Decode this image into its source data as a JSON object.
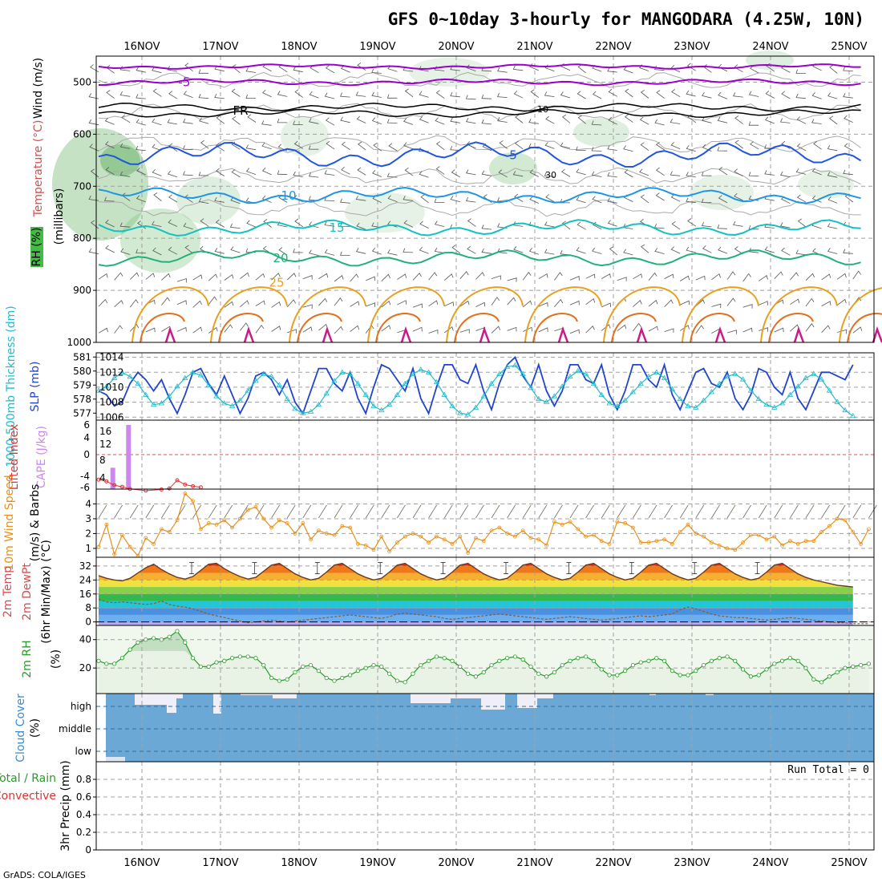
{
  "title": "GFS 0~10day 3-hourly for MANGODARA (4.25W, 10N)",
  "footer": "GrADS: COLA/IGES",
  "x_labels": [
    "16NOV",
    "17NOV",
    "18NOV",
    "19NOV",
    "20NOV",
    "21NOV",
    "22NOV",
    "23NOV",
    "24NOV",
    "25NOV"
  ],
  "colors": {
    "grid": "#a0a0a0",
    "rh_fill": "#7fbf7f",
    "temp_500": "#9900cc",
    "temp_fr": "#000000",
    "temp_5": "#2255dd",
    "temp_10": "#1e96e6",
    "temp_15": "#14c0c0",
    "temp_20": "#22b07a",
    "temp_25": "#e8a020",
    "temp_30": "#e07020",
    "temp_35": "#cc1a88",
    "slp": "#2244cc",
    "thickness": "#22bbcc",
    "cape": "#cc88ee",
    "lifted": "#dd3333",
    "wind10m": "#e8901a",
    "rh2m": "#2a9a2a",
    "cloud": "#6ba8d6",
    "cloud_gap": "#f0eef8"
  },
  "chart_data": [
    {
      "panel": "upper-air",
      "type": "heatmap",
      "ylabels": [
        "Wind (m/s)",
        "Temperature (°C)",
        "RH (%)",
        "(millibars)"
      ],
      "yticks": [
        500,
        600,
        700,
        800,
        900,
        1000
      ],
      "ylim": [
        1000,
        450
      ],
      "isotherm_labels": [
        {
          "label": "-5",
          "level": 500
        },
        {
          "label": "FR",
          "level": 555
        },
        {
          "label": "5",
          "level": 640
        },
        {
          "label": "10",
          "level": 718
        },
        {
          "label": "15",
          "level": 780
        },
        {
          "label": "20",
          "level": 838
        },
        {
          "label": "25",
          "level": 885
        }
      ],
      "contour_labels": [
        "10",
        "30"
      ]
    },
    {
      "panel": "slp-thickness",
      "type": "line",
      "ylabels": [
        "1000-500mb Thickness (dm)",
        "SLP (mb)"
      ],
      "left_ticks": [
        577,
        578,
        579,
        580,
        581
      ],
      "right_ticks": [
        1006,
        1008,
        1010,
        1012,
        1014
      ],
      "left_ylim": [
        576.5,
        581.3
      ],
      "right_ylim": [
        1005.6,
        1014.6
      ],
      "series": [
        {
          "name": "SLP (mb)",
          "values": [
            1009.5,
            1009.0,
            1007.5,
            1008.0,
            1010.5,
            1012.0,
            1011.0,
            1009.5,
            1011.0,
            1008.5,
            1006.5,
            1009.0,
            1012.0,
            1012.5,
            1010.5,
            1009.0,
            1011.5,
            1009.0,
            1006.5,
            1008.5,
            1011.5,
            1012.0,
            1011.0,
            1009.0,
            1011.0,
            1008.0,
            1006.5,
            1009.5,
            1012.5,
            1012.5,
            1010.5,
            1009.5,
            1012.0,
            1008.5,
            1006.5,
            1010.0,
            1013.0,
            1012.5,
            1011.0,
            1009.5,
            1012.5,
            1008.5,
            1006.5,
            1010.0,
            1013.0,
            1013.0,
            1011.0,
            1010.5,
            1013.0,
            1009.5,
            1007.0,
            1010.5,
            1013.0,
            1014.0,
            1011.5,
            1010.0,
            1013.0,
            1009.5,
            1007.5,
            1009.5,
            1013.0,
            1013.0,
            1011.0,
            1010.5,
            1013.0,
            1009.0,
            1007.0,
            1009.5,
            1013.0,
            1013.0,
            1011.0,
            1010.0,
            1013.0,
            1009.0,
            1007.0,
            1009.5,
            1012.0,
            1012.5,
            1010.5,
            1010.0,
            1012.0,
            1008.5,
            1007.0,
            1009.0,
            1012.5,
            1012.0,
            1010.0,
            1009.0,
            1012.0,
            1008.5,
            1007.0,
            1009.5,
            1012.0,
            1012.0,
            1011.5,
            1011.0,
            1013.0
          ]
        },
        {
          "name": "1000-500mb Thickness (dm)",
          "values": [
            578.6,
            578.9,
            579.5,
            579.9,
            579.6,
            579.1,
            578.3,
            577.6,
            577.7,
            578.2,
            578.9,
            579.5,
            579.9,
            579.7,
            579.0,
            578.2,
            577.7,
            577.5,
            577.9,
            578.6,
            579.3,
            579.8,
            579.6,
            579.0,
            578.0,
            577.3,
            577.0,
            577.1,
            577.6,
            578.4,
            579.3,
            579.9,
            579.8,
            579.1,
            578.3,
            577.5,
            577.2,
            577.6,
            578.3,
            579.1,
            579.8,
            580.1,
            579.9,
            579.2,
            578.3,
            577.5,
            577.0,
            576.9,
            577.4,
            578.2,
            579.1,
            579.8,
            580.3,
            580.4,
            579.8,
            578.8,
            578.0,
            577.8,
            578.2,
            578.9,
            579.6,
            580.0,
            579.8,
            579.1,
            578.3,
            577.7,
            577.5,
            577.9,
            578.5,
            579.1,
            579.6,
            579.9,
            579.5,
            578.7,
            578.0,
            577.5,
            577.4,
            577.9,
            578.5,
            579.1,
            579.6,
            579.8,
            579.4,
            578.6,
            578.0,
            577.6,
            577.4,
            577.7,
            578.3,
            578.9,
            579.5,
            579.8,
            579.4,
            578.6,
            577.8,
            577.2,
            576.8
          ]
        }
      ]
    },
    {
      "panel": "cape-lifted",
      "type": "bar",
      "ylabels": [
        "CAPE (J/kg)",
        "Lifted Index"
      ],
      "left_ticks": [
        "6",
        "4",
        "0",
        "-4",
        "-6"
      ],
      "right_ticks": [
        "16",
        "12",
        "8",
        "4"
      ],
      "series": [
        {
          "name": "CAPE (J/kg)",
          "values": [
            {
              "x": 1.5,
              "v": 6
            },
            {
              "x": 3.5,
              "v": 18
            }
          ]
        },
        {
          "name": "Lifted Index",
          "values": [
            {
              "x": 0,
              "v": 4.6
            },
            {
              "x": 1,
              "v": 4.9
            },
            {
              "x": 2,
              "v": 5.6
            },
            {
              "x": 3,
              "v": 5.9
            },
            {
              "x": 4,
              "v": 6.3
            },
            {
              "x": 6,
              "v": 6.6
            },
            {
              "x": 8,
              "v": 6.4
            },
            {
              "x": 9,
              "v": 6.2
            },
            {
              "x": 10,
              "v": 4.7
            },
            {
              "x": 11,
              "v": 5.5
            },
            {
              "x": 12,
              "v": 5.8
            },
            {
              "x": 13,
              "v": 6.0
            }
          ]
        }
      ]
    },
    {
      "panel": "wind10m",
      "type": "line",
      "ylabels": [
        "10m Wind Speed",
        "(m/s) & Barbs"
      ],
      "yticks": [
        1,
        2,
        3,
        4
      ],
      "ylim": [
        0.4,
        5.0
      ],
      "series": [
        {
          "name": "10m Wind Speed",
          "values": [
            1.1,
            2.6,
            0.6,
            1.9,
            1.1,
            0.5,
            1.7,
            1.3,
            2.3,
            2.1,
            2.9,
            4.7,
            4.2,
            2.3,
            2.7,
            2.6,
            2.9,
            2.4,
            3.0,
            3.6,
            3.8,
            3.0,
            2.4,
            2.9,
            2.7,
            2.0,
            2.7,
            1.6,
            2.2,
            2.0,
            1.9,
            2.5,
            2.4,
            1.3,
            1.2,
            0.9,
            1.8,
            0.8,
            1.4,
            1.8,
            2.0,
            1.8,
            1.4,
            1.8,
            1.6,
            1.3,
            1.8,
            0.7,
            1.7,
            1.5,
            2.2,
            2.4,
            2.0,
            1.8,
            2.2,
            1.7,
            1.6,
            1.2,
            2.8,
            2.6,
            2.8,
            2.3,
            1.8,
            1.9,
            1.5,
            1.3,
            2.8,
            2.7,
            2.4,
            1.4,
            1.4,
            1.5,
            1.6,
            1.3,
            2.1,
            2.6,
            2.0,
            1.8,
            1.4,
            1.2,
            1.0,
            0.9,
            1.4,
            1.9,
            1.9,
            1.6,
            1.8,
            1.2,
            1.5,
            1.3,
            1.5,
            1.5,
            2.1,
            2.5,
            3.0,
            2.9,
            2.1,
            1.3,
            2.3
          ]
        }
      ]
    },
    {
      "panel": "temp2m",
      "type": "area",
      "ylabels": [
        "2m Temp",
        "2m DewPt",
        "(6hr Min/Max) (°C)"
      ],
      "yticks": [
        0,
        8,
        16,
        24,
        32
      ],
      "ylim": [
        -2,
        37
      ],
      "series": [
        {
          "name": "2m Temp",
          "values": [
            26.5,
            25.0,
            24.0,
            23.5,
            25.0,
            28.0,
            31.0,
            33.0,
            30.0,
            27.5,
            25.5,
            24.5,
            26.0,
            29.5,
            33.0,
            33.5,
            30.5,
            28.0,
            26.0,
            24.5,
            25.5,
            29.0,
            32.5,
            33.5,
            30.5,
            27.5,
            25.5,
            24.0,
            25.0,
            28.5,
            32.5,
            33.5,
            30.5,
            27.5,
            25.5,
            24.0,
            25.0,
            28.5,
            32.5,
            33.5,
            30.5,
            27.5,
            25.5,
            24.0,
            25.0,
            28.5,
            32.5,
            33.5,
            30.5,
            27.5,
            25.5,
            24.0,
            25.0,
            28.5,
            32.5,
            33.5,
            30.5,
            27.5,
            25.5,
            24.0,
            25.0,
            28.5,
            32.5,
            33.5,
            30.5,
            27.5,
            25.5,
            24.0,
            25.0,
            28.5,
            32.5,
            33.5,
            30.5,
            27.5,
            25.5,
            24.0,
            25.0,
            28.5,
            32.5,
            33.5,
            30.5,
            27.5,
            25.5,
            24.0,
            25.0,
            28.5,
            32.5,
            33.5,
            30.5,
            27.5,
            25.5,
            24.0,
            23.0,
            22.0,
            21.0,
            20.5,
            20.0
          ]
        },
        {
          "name": "2m DewPt",
          "values": [
            13.0,
            11.5,
            11.0,
            11.5,
            11.0,
            10.5,
            10.0,
            10.5,
            12.0,
            10.0,
            9.0,
            8.5,
            7.5,
            6.0,
            4.5,
            3.5,
            2.5,
            1.5,
            0.5,
            -0.5,
            0.0,
            0.5,
            1.0,
            0.5,
            0.0,
            0.5,
            1.0,
            1.5,
            2.0,
            2.5,
            3.0,
            3.5,
            4.0,
            3.5,
            3.0,
            2.5,
            2.0,
            3.0,
            4.5,
            5.0,
            4.5,
            4.0,
            3.5,
            3.0,
            2.0,
            1.5,
            2.0,
            2.5,
            3.0,
            3.5,
            4.0,
            4.5,
            4.0,
            3.5,
            3.0,
            2.5,
            2.0,
            1.5,
            2.0,
            2.5,
            3.0,
            2.5,
            2.0,
            1.5,
            1.0,
            1.5,
            2.0,
            2.5,
            3.0,
            3.5,
            3.0,
            3.5,
            4.0,
            4.5,
            7.0,
            8.5,
            7.5,
            6.0,
            4.5,
            3.5,
            3.0,
            2.5,
            2.5,
            2.0,
            1.5,
            1.0,
            1.5,
            2.0,
            2.5,
            2.0,
            1.5,
            1.0,
            0.5,
            0.0,
            -0.5,
            -0.5,
            -1.0,
            -1.0,
            -1.0
          ]
        }
      ]
    },
    {
      "panel": "rh2m",
      "type": "area",
      "ylabels": [
        "2m RH",
        "(%)"
      ],
      "yticks": [
        20,
        40
      ],
      "ylim": [
        2,
        50
      ],
      "series": [
        {
          "name": "2m RH",
          "values": [
            25,
            23,
            23,
            27,
            33,
            38,
            40,
            41,
            40,
            42,
            46,
            38,
            27,
            21,
            21,
            24,
            25,
            27,
            28,
            28,
            27,
            22,
            13,
            11,
            12,
            17,
            21,
            22,
            18,
            13,
            11,
            13,
            15,
            18,
            20,
            22,
            21,
            16,
            11,
            10,
            16,
            22,
            25,
            28,
            27,
            25,
            21,
            16,
            14,
            17,
            22,
            25,
            27,
            28,
            26,
            21,
            16,
            14,
            17,
            22,
            25,
            27,
            28,
            25,
            19,
            15,
            15,
            18,
            22,
            24,
            25,
            27,
            25,
            18,
            15,
            15,
            18,
            22,
            25,
            27,
            28,
            25,
            19,
            14,
            15,
            19,
            23,
            25,
            27,
            25,
            20,
            12,
            10,
            14,
            17,
            20,
            21,
            22,
            23
          ]
        }
      ]
    },
    {
      "panel": "cloud",
      "type": "bar",
      "ylabels": [
        "Cloud Cover",
        "(%)"
      ],
      "yticks": [
        "high",
        "middle",
        "low"
      ]
    },
    {
      "panel": "precip",
      "type": "bar",
      "ylabels": [
        "3hr Precip (mm)",
        "Total / Rain",
        "Convective"
      ],
      "yticks": [
        "0",
        "0.2",
        "0.4",
        "0.6",
        "0.8"
      ],
      "ylim": [
        0,
        1.0
      ],
      "run_total": "Run Total = 0"
    }
  ]
}
